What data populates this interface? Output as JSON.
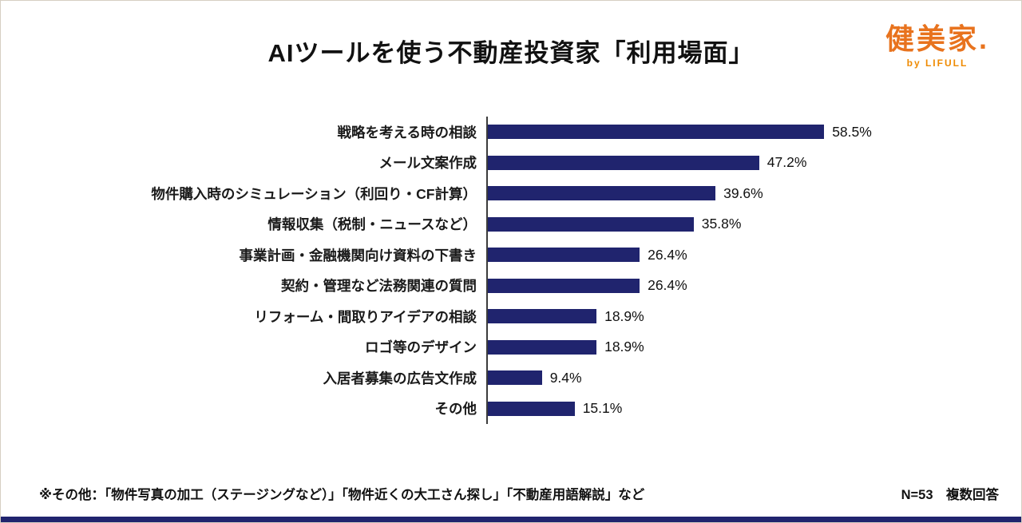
{
  "header": {
    "title": "AIツールを使う不動産投資家「利用場面」"
  },
  "logo": {
    "brand": "健美家",
    "dot": ".",
    "byline": "by LIFULL"
  },
  "footer": {
    "note": "※その他：「物件写真の加工（ステージングなど）」「物件近くの大工さん探し」「不動産用語解説」など",
    "sample": "N=53　複数回答"
  },
  "colors": {
    "bar": "#20246e",
    "axis": "#3c3c3c",
    "brand_orange": "#e8731e",
    "byline_orange": "#ef8a00",
    "bottom_strip": "#20246e",
    "frame": "#d6cfc3"
  },
  "chart_data": {
    "type": "bar",
    "orientation": "horizontal",
    "title": "AIツールを使う不動産投資家「利用場面」",
    "xlabel": "",
    "ylabel": "",
    "value_suffix": "%",
    "xlim": [
      0,
      62
    ],
    "grid": false,
    "legend": false,
    "categories": [
      "戦略を考える時の相談",
      "メール文案作成",
      "物件購入時のシミュレーション（利回り・CF計算）",
      "情報収集（税制・ニュースなど）",
      "事業計画・金融機関向け資料の下書き",
      "契約・管理など法務関連の質問",
      "リフォーム・間取りアイデアの相談",
      "ロゴ等のデザイン",
      "入居者募集の広告文作成",
      "その他"
    ],
    "values": [
      58.5,
      47.2,
      39.6,
      35.8,
      26.4,
      26.4,
      18.9,
      18.9,
      9.4,
      15.1
    ]
  }
}
